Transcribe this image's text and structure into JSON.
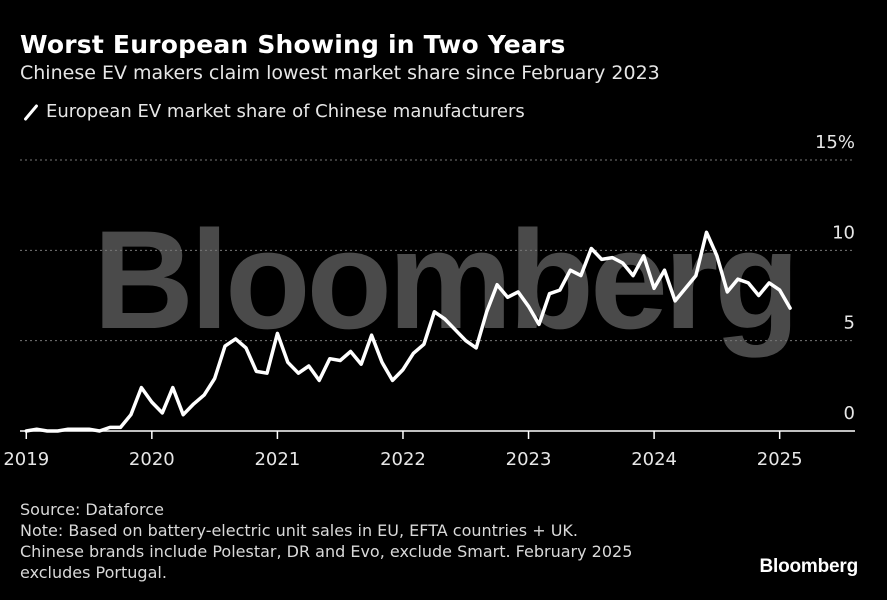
{
  "header": {
    "title": "Worst European Showing in Two Years",
    "subtitle": "Chinese EV makers claim lowest market share since February 2023"
  },
  "legend": {
    "label": "European EV market share of Chinese manufacturers"
  },
  "footer": {
    "source": "Source: Dataforce",
    "note_lines": [
      "Note: Based on battery-electric unit sales in EU, EFTA countries + UK.",
      "Chinese brands include Polestar, DR and Evo, exclude Smart. February 2025",
      "excludes Portugal."
    ],
    "brand": "Bloomberg"
  },
  "watermark": "Bloomberg",
  "colors": {
    "background": "#000000",
    "line": "#ffffff",
    "grid": "#777777",
    "watermark": "#4a4a4a"
  },
  "chart_data": {
    "type": "line",
    "title": "Worst European Showing in Two Years",
    "subtitle": "Chinese EV makers claim lowest market share since February 2023",
    "xlabel": "",
    "ylabel": "",
    "ylim": [
      0,
      15
    ],
    "y_ticks": [
      0,
      5,
      10,
      15
    ],
    "y_tick_labels": [
      "0",
      "5",
      "10",
      "15%"
    ],
    "x_ticks": [
      2019,
      2020,
      2021,
      2022,
      2023,
      2024,
      2025
    ],
    "x_tick_labels": [
      "2019",
      "2020",
      "2021",
      "2022",
      "2023",
      "2024",
      "2025"
    ],
    "xlim": [
      2018.95,
      2025.6
    ],
    "grid": true,
    "y_axis_side": "right",
    "legend_position": "top-left",
    "series": [
      {
        "name": "European EV market share of Chinese manufacturers",
        "color": "#ffffff",
        "x": [
          2019.0,
          2019.083,
          2019.167,
          2019.25,
          2019.333,
          2019.417,
          2019.5,
          2019.583,
          2019.667,
          2019.75,
          2019.833,
          2019.917,
          2020.0,
          2020.083,
          2020.167,
          2020.25,
          2020.333,
          2020.417,
          2020.5,
          2020.583,
          2020.667,
          2020.75,
          2020.833,
          2020.917,
          2021.0,
          2021.083,
          2021.167,
          2021.25,
          2021.333,
          2021.417,
          2021.5,
          2021.583,
          2021.667,
          2021.75,
          2021.833,
          2021.917,
          2022.0,
          2022.083,
          2022.167,
          2022.25,
          2022.333,
          2022.417,
          2022.5,
          2022.583,
          2022.667,
          2022.75,
          2022.833,
          2022.917,
          2023.0,
          2023.083,
          2023.167,
          2023.25,
          2023.333,
          2023.417,
          2023.5,
          2023.583,
          2023.667,
          2023.75,
          2023.833,
          2023.917,
          2024.0,
          2024.083,
          2024.167,
          2024.25,
          2024.333,
          2024.417,
          2024.5,
          2024.583,
          2024.667,
          2024.75,
          2024.833,
          2024.917,
          2025.0,
          2025.083
        ],
        "values": [
          0.0,
          0.1,
          0.0,
          0.0,
          0.1,
          0.1,
          0.1,
          0.0,
          0.2,
          0.2,
          0.9,
          2.4,
          1.6,
          1.0,
          2.4,
          0.9,
          1.5,
          2.0,
          2.9,
          4.7,
          5.1,
          4.6,
          3.3,
          3.2,
          5.4,
          3.8,
          3.2,
          3.6,
          2.8,
          4.0,
          3.9,
          4.4,
          3.7,
          5.3,
          3.8,
          2.8,
          3.4,
          4.3,
          4.8,
          6.6,
          6.2,
          5.6,
          5.0,
          4.6,
          6.6,
          8.1,
          7.4,
          7.7,
          6.9,
          5.9,
          7.6,
          7.8,
          8.9,
          8.6,
          10.1,
          9.5,
          9.6,
          9.3,
          8.6,
          9.7,
          7.9,
          8.9,
          7.2,
          7.9,
          8.6,
          11.0,
          9.7,
          7.7,
          8.4,
          8.2,
          7.5,
          8.2,
          7.8,
          6.8
        ]
      }
    ]
  }
}
